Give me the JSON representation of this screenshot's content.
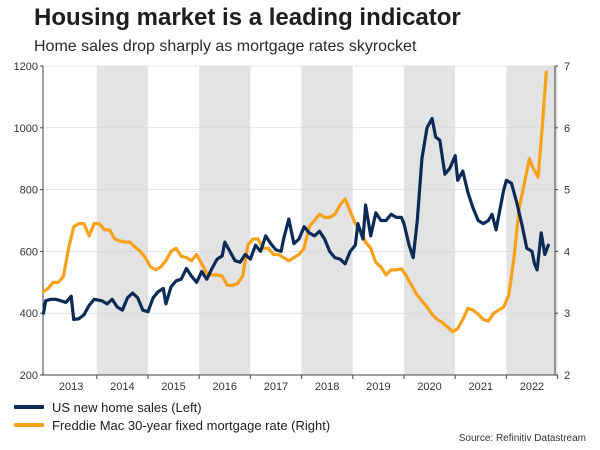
{
  "header": {
    "title": "Housing market is a leading indicator",
    "subtitle": "Home sales drop sharply as mortgage rates skyrocket"
  },
  "source": "Source: Refinitiv Datastream",
  "colors": {
    "sales": "#0b2a55",
    "rate": "#f7a11a",
    "shade": "#e3e3e3"
  },
  "chart_data": {
    "type": "line",
    "x_categories": [
      "2013",
      "2014",
      "2015",
      "2016",
      "2017",
      "2018",
      "2019",
      "2020",
      "2021",
      "2022"
    ],
    "left_axis": {
      "ylim": [
        200,
        1200
      ],
      "ticks": [
        200,
        400,
        600,
        800,
        1000,
        1200
      ]
    },
    "right_axis": {
      "ylim": [
        2,
        7
      ],
      "ticks": [
        2,
        3,
        4,
        5,
        6,
        7
      ]
    },
    "shading": "alternate years shaded grey (2014, 2016, 2018, 2020, 2022)",
    "series": [
      {
        "name": "US new home sales (Left)",
        "axis": "left",
        "color": "#0b2a55",
        "points": [
          [
            2012.96,
            400
          ],
          [
            2013.0,
            440
          ],
          [
            2013.1,
            445
          ],
          [
            2013.2,
            445
          ],
          [
            2013.3,
            440
          ],
          [
            2013.4,
            435
          ],
          [
            2013.5,
            455
          ],
          [
            2013.55,
            380
          ],
          [
            2013.65,
            382
          ],
          [
            2013.75,
            395
          ],
          [
            2013.85,
            425
          ],
          [
            2013.95,
            445
          ],
          [
            2014.1,
            440
          ],
          [
            2014.2,
            430
          ],
          [
            2014.3,
            445
          ],
          [
            2014.4,
            420
          ],
          [
            2014.5,
            410
          ],
          [
            2014.6,
            450
          ],
          [
            2014.7,
            465
          ],
          [
            2014.8,
            450
          ],
          [
            2014.9,
            410
          ],
          [
            2015.0,
            405
          ],
          [
            2015.1,
            450
          ],
          [
            2015.2,
            470
          ],
          [
            2015.3,
            480
          ],
          [
            2015.35,
            430
          ],
          [
            2015.45,
            485
          ],
          [
            2015.55,
            505
          ],
          [
            2015.65,
            510
          ],
          [
            2015.75,
            545
          ],
          [
            2015.85,
            520
          ],
          [
            2015.95,
            500
          ],
          [
            2016.05,
            535
          ],
          [
            2016.15,
            510
          ],
          [
            2016.25,
            545
          ],
          [
            2016.35,
            575
          ],
          [
            2016.45,
            585
          ],
          [
            2016.5,
            630
          ],
          [
            2016.6,
            600
          ],
          [
            2016.7,
            570
          ],
          [
            2016.8,
            565
          ],
          [
            2016.9,
            590
          ],
          [
            2017.0,
            575
          ],
          [
            2017.1,
            620
          ],
          [
            2017.2,
            600
          ],
          [
            2017.3,
            650
          ],
          [
            2017.4,
            625
          ],
          [
            2017.5,
            605
          ],
          [
            2017.6,
            600
          ],
          [
            2017.65,
            640
          ],
          [
            2017.75,
            705
          ],
          [
            2017.85,
            625
          ],
          [
            2017.95,
            640
          ],
          [
            2018.05,
            680
          ],
          [
            2018.15,
            660
          ],
          [
            2018.25,
            650
          ],
          [
            2018.35,
            665
          ],
          [
            2018.45,
            640
          ],
          [
            2018.55,
            600
          ],
          [
            2018.65,
            580
          ],
          [
            2018.75,
            575
          ],
          [
            2018.85,
            560
          ],
          [
            2018.95,
            600
          ],
          [
            2019.05,
            620
          ],
          [
            2019.1,
            690
          ],
          [
            2019.2,
            640
          ],
          [
            2019.25,
            750
          ],
          [
            2019.35,
            650
          ],
          [
            2019.45,
            725
          ],
          [
            2019.55,
            700
          ],
          [
            2019.65,
            700
          ],
          [
            2019.75,
            720
          ],
          [
            2019.85,
            710
          ],
          [
            2019.95,
            710
          ],
          [
            2020.0,
            690
          ],
          [
            2020.1,
            620
          ],
          [
            2020.18,
            580
          ],
          [
            2020.26,
            700
          ],
          [
            2020.35,
            900
          ],
          [
            2020.45,
            1000
          ],
          [
            2020.55,
            1030
          ],
          [
            2020.62,
            970
          ],
          [
            2020.7,
            960
          ],
          [
            2020.8,
            850
          ],
          [
            2020.9,
            870
          ],
          [
            2021.0,
            910
          ],
          [
            2021.05,
            830
          ],
          [
            2021.15,
            860
          ],
          [
            2021.25,
            790
          ],
          [
            2021.35,
            740
          ],
          [
            2021.45,
            700
          ],
          [
            2021.55,
            690
          ],
          [
            2021.65,
            700
          ],
          [
            2021.72,
            720
          ],
          [
            2021.8,
            670
          ],
          [
            2021.88,
            740
          ],
          [
            2021.95,
            800
          ],
          [
            2022.0,
            830
          ],
          [
            2022.1,
            820
          ],
          [
            2022.2,
            760
          ],
          [
            2022.3,
            690
          ],
          [
            2022.4,
            610
          ],
          [
            2022.5,
            600
          ],
          [
            2022.55,
            560
          ],
          [
            2022.6,
            540
          ],
          [
            2022.68,
            660
          ],
          [
            2022.75,
            590
          ],
          [
            2022.82,
            620
          ]
        ]
      },
      {
        "name": "Freddie Mac 30-year fixed mortgage rate (Right)",
        "axis": "right",
        "color": "#f7a11a",
        "points": [
          [
            2012.96,
            3.35
          ],
          [
            2013.05,
            3.4
          ],
          [
            2013.15,
            3.5
          ],
          [
            2013.25,
            3.5
          ],
          [
            2013.35,
            3.6
          ],
          [
            2013.45,
            4.05
          ],
          [
            2013.55,
            4.4
          ],
          [
            2013.65,
            4.45
          ],
          [
            2013.75,
            4.45
          ],
          [
            2013.85,
            4.25
          ],
          [
            2013.95,
            4.45
          ],
          [
            2014.05,
            4.45
          ],
          [
            2014.15,
            4.35
          ],
          [
            2014.25,
            4.35
          ],
          [
            2014.35,
            4.2
          ],
          [
            2014.45,
            4.17
          ],
          [
            2014.55,
            4.15
          ],
          [
            2014.65,
            4.15
          ],
          [
            2014.75,
            4.07
          ],
          [
            2014.85,
            4.0
          ],
          [
            2014.95,
            3.9
          ],
          [
            2015.05,
            3.75
          ],
          [
            2015.15,
            3.7
          ],
          [
            2015.25,
            3.75
          ],
          [
            2015.35,
            3.85
          ],
          [
            2015.45,
            4.0
          ],
          [
            2015.55,
            4.05
          ],
          [
            2015.65,
            3.92
          ],
          [
            2015.75,
            3.9
          ],
          [
            2015.85,
            3.85
          ],
          [
            2015.95,
            3.95
          ],
          [
            2016.05,
            3.8
          ],
          [
            2016.15,
            3.65
          ],
          [
            2016.25,
            3.62
          ],
          [
            2016.35,
            3.62
          ],
          [
            2016.45,
            3.6
          ],
          [
            2016.55,
            3.45
          ],
          [
            2016.65,
            3.45
          ],
          [
            2016.75,
            3.48
          ],
          [
            2016.85,
            3.6
          ],
          [
            2016.95,
            4.1
          ],
          [
            2017.05,
            4.2
          ],
          [
            2017.15,
            4.2
          ],
          [
            2017.25,
            4.05
          ],
          [
            2017.35,
            4.05
          ],
          [
            2017.45,
            3.95
          ],
          [
            2017.55,
            3.95
          ],
          [
            2017.65,
            3.9
          ],
          [
            2017.75,
            3.85
          ],
          [
            2017.85,
            3.9
          ],
          [
            2017.95,
            3.95
          ],
          [
            2018.05,
            4.05
          ],
          [
            2018.15,
            4.4
          ],
          [
            2018.25,
            4.5
          ],
          [
            2018.35,
            4.6
          ],
          [
            2018.45,
            4.55
          ],
          [
            2018.55,
            4.55
          ],
          [
            2018.65,
            4.6
          ],
          [
            2018.75,
            4.75
          ],
          [
            2018.85,
            4.85
          ],
          [
            2018.95,
            4.65
          ],
          [
            2019.05,
            4.45
          ],
          [
            2019.15,
            4.35
          ],
          [
            2019.25,
            4.15
          ],
          [
            2019.35,
            4.05
          ],
          [
            2019.45,
            3.82
          ],
          [
            2019.55,
            3.75
          ],
          [
            2019.65,
            3.62
          ],
          [
            2019.75,
            3.7
          ],
          [
            2019.85,
            3.7
          ],
          [
            2019.95,
            3.72
          ],
          [
            2020.05,
            3.6
          ],
          [
            2020.15,
            3.45
          ],
          [
            2020.25,
            3.3
          ],
          [
            2020.35,
            3.2
          ],
          [
            2020.45,
            3.1
          ],
          [
            2020.55,
            2.98
          ],
          [
            2020.65,
            2.9
          ],
          [
            2020.75,
            2.85
          ],
          [
            2020.85,
            2.78
          ],
          [
            2020.95,
            2.7
          ],
          [
            2021.05,
            2.75
          ],
          [
            2021.15,
            2.9
          ],
          [
            2021.25,
            3.08
          ],
          [
            2021.35,
            3.05
          ],
          [
            2021.45,
            2.98
          ],
          [
            2021.55,
            2.9
          ],
          [
            2021.65,
            2.87
          ],
          [
            2021.75,
            3.0
          ],
          [
            2021.85,
            3.05
          ],
          [
            2021.95,
            3.1
          ],
          [
            2022.05,
            3.3
          ],
          [
            2022.15,
            3.9
          ],
          [
            2022.25,
            4.7
          ],
          [
            2022.35,
            5.1
          ],
          [
            2022.45,
            5.5
          ],
          [
            2022.52,
            5.35
          ],
          [
            2022.62,
            5.2
          ],
          [
            2022.7,
            6.0
          ],
          [
            2022.78,
            6.9
          ]
        ]
      }
    ]
  },
  "legend": [
    {
      "label": "US new home sales (Left)",
      "color": "#0b2a55"
    },
    {
      "label": "Freddie Mac 30-year fixed mortgage rate (Right)",
      "color": "#f7a11a"
    }
  ]
}
